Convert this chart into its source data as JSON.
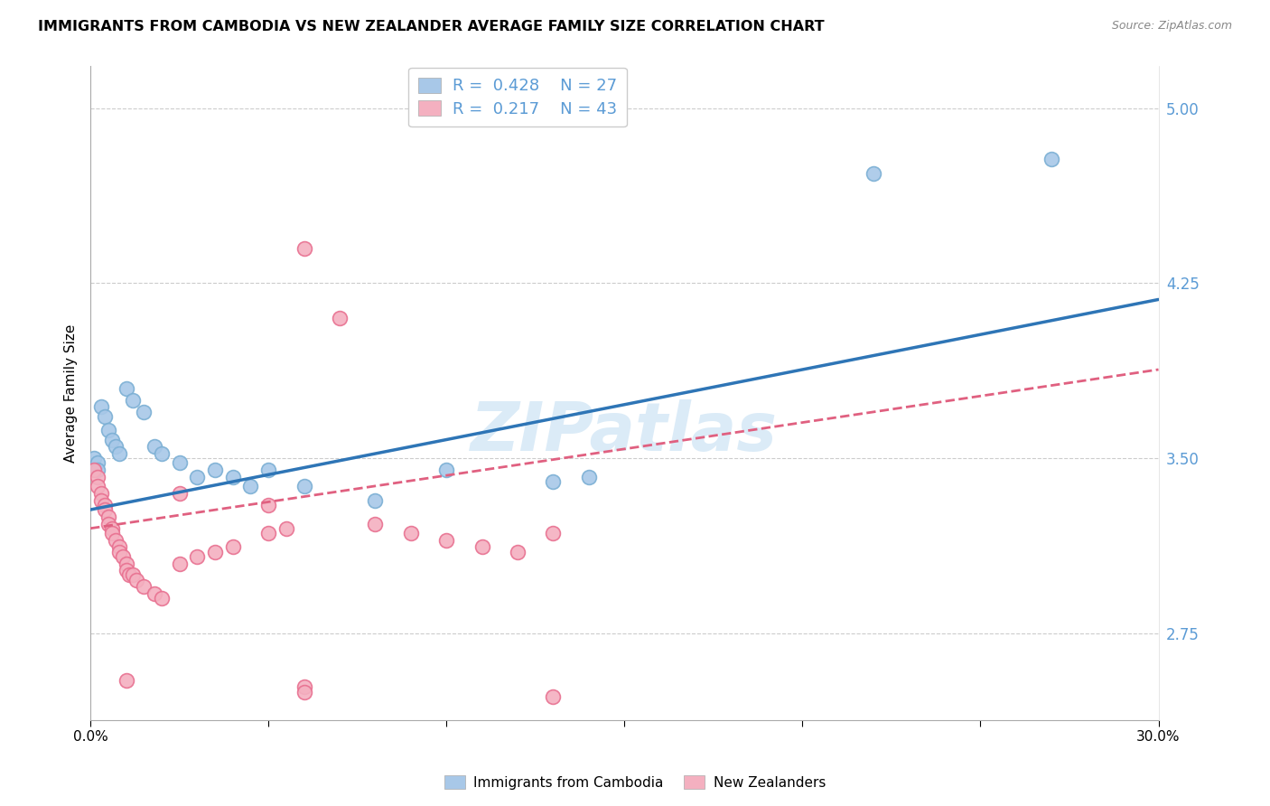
{
  "title": "IMMIGRANTS FROM CAMBODIA VS NEW ZEALANDER AVERAGE FAMILY SIZE CORRELATION CHART",
  "source": "Source: ZipAtlas.com",
  "ylabel": "Average Family Size",
  "xlim": [
    0.0,
    0.3
  ],
  "ylim": [
    2.38,
    5.18
  ],
  "yticks": [
    2.75,
    3.5,
    4.25,
    5.0
  ],
  "xticks": [
    0.0,
    0.05,
    0.1,
    0.15,
    0.2,
    0.25,
    0.3
  ],
  "xtick_labels": [
    "0.0%",
    "",
    "",
    "",
    "",
    "",
    "30.0%"
  ],
  "axis_color": "#5b9bd5",
  "watermark": "ZIPatlas",
  "series": [
    {
      "name": "Immigrants from Cambodia",
      "R": 0.428,
      "N": 27,
      "color": "#a8c8e8",
      "edge_color": "#7bafd4",
      "line_color": "#2e75b6",
      "line_style": "solid",
      "trend_x0": 0.0,
      "trend_y0": 3.28,
      "trend_x1": 0.3,
      "trend_y1": 4.18,
      "x": [
        0.001,
        0.002,
        0.003,
        0.004,
        0.005,
        0.006,
        0.007,
        0.008,
        0.01,
        0.012,
        0.015,
        0.018,
        0.02,
        0.025,
        0.03,
        0.035,
        0.04,
        0.045,
        0.05,
        0.06,
        0.08,
        0.1,
        0.13,
        0.22,
        0.27,
        0.14,
        0.002
      ],
      "y": [
        3.5,
        3.48,
        3.72,
        3.68,
        3.62,
        3.58,
        3.55,
        3.52,
        3.8,
        3.75,
        3.7,
        3.55,
        3.52,
        3.48,
        3.42,
        3.45,
        3.42,
        3.38,
        3.45,
        3.38,
        3.32,
        3.45,
        3.4,
        4.72,
        4.78,
        3.42,
        3.45
      ]
    },
    {
      "name": "New Zealanders",
      "R": 0.217,
      "N": 43,
      "color": "#f4b0c0",
      "edge_color": "#e87090",
      "line_color": "#e06080",
      "line_style": "dashed",
      "trend_x0": 0.0,
      "trend_y0": 3.2,
      "trend_x1": 0.3,
      "trend_y1": 3.88,
      "x": [
        0.001,
        0.002,
        0.002,
        0.003,
        0.003,
        0.004,
        0.004,
        0.005,
        0.005,
        0.006,
        0.006,
        0.007,
        0.008,
        0.008,
        0.009,
        0.01,
        0.01,
        0.011,
        0.012,
        0.013,
        0.015,
        0.018,
        0.02,
        0.025,
        0.03,
        0.035,
        0.04,
        0.05,
        0.055,
        0.06,
        0.07,
        0.08,
        0.09,
        0.1,
        0.11,
        0.12,
        0.13,
        0.13,
        0.06,
        0.06,
        0.05,
        0.025,
        0.01
      ],
      "y": [
        3.45,
        3.42,
        3.38,
        3.35,
        3.32,
        3.3,
        3.28,
        3.25,
        3.22,
        3.2,
        3.18,
        3.15,
        3.12,
        3.1,
        3.08,
        3.05,
        3.02,
        3.0,
        3.0,
        2.98,
        2.95,
        2.92,
        2.9,
        3.05,
        3.08,
        3.1,
        3.12,
        3.18,
        3.2,
        4.4,
        4.1,
        3.22,
        3.18,
        3.15,
        3.12,
        3.1,
        3.18,
        2.48,
        2.52,
        2.5,
        3.3,
        3.35,
        2.55
      ]
    }
  ]
}
